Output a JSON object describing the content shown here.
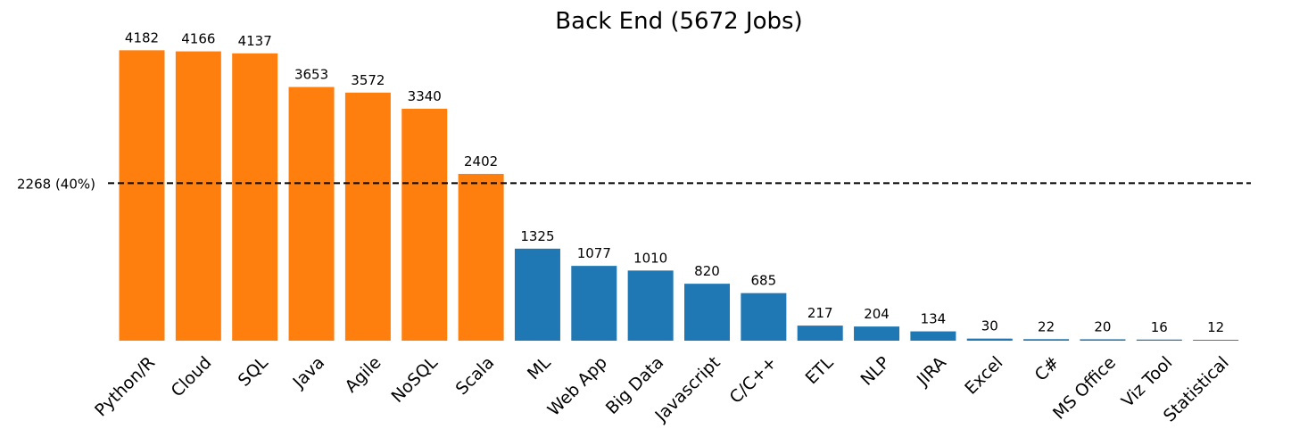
{
  "chart_data": {
    "type": "bar",
    "title": "Back End (5672 Jobs)",
    "xlabel": "",
    "ylabel": "",
    "ylim": [
      0,
      4392
    ],
    "grid": false,
    "legend": "none",
    "categories": [
      "Python/R",
      "Cloud",
      "SQL",
      "Java",
      "Agile",
      "NoSQL",
      "Scala",
      "ML",
      "Web App",
      "Big Data",
      "Javascript",
      "C/C++",
      "ETL",
      "NLP",
      "JIRA",
      "Excel",
      "C#",
      "MS Office",
      "Viz Tool",
      "Statistical"
    ],
    "values": [
      4182,
      4166,
      4137,
      3653,
      3572,
      3340,
      2402,
      1325,
      1077,
      1010,
      820,
      685,
      217,
      204,
      134,
      30,
      22,
      20,
      16,
      12
    ],
    "threshold": {
      "value": 2268,
      "label": "2268 (40%)"
    },
    "colors": {
      "above": "#ff7f0e",
      "below": "#1f77b4",
      "threshold_line": "#000000"
    }
  }
}
